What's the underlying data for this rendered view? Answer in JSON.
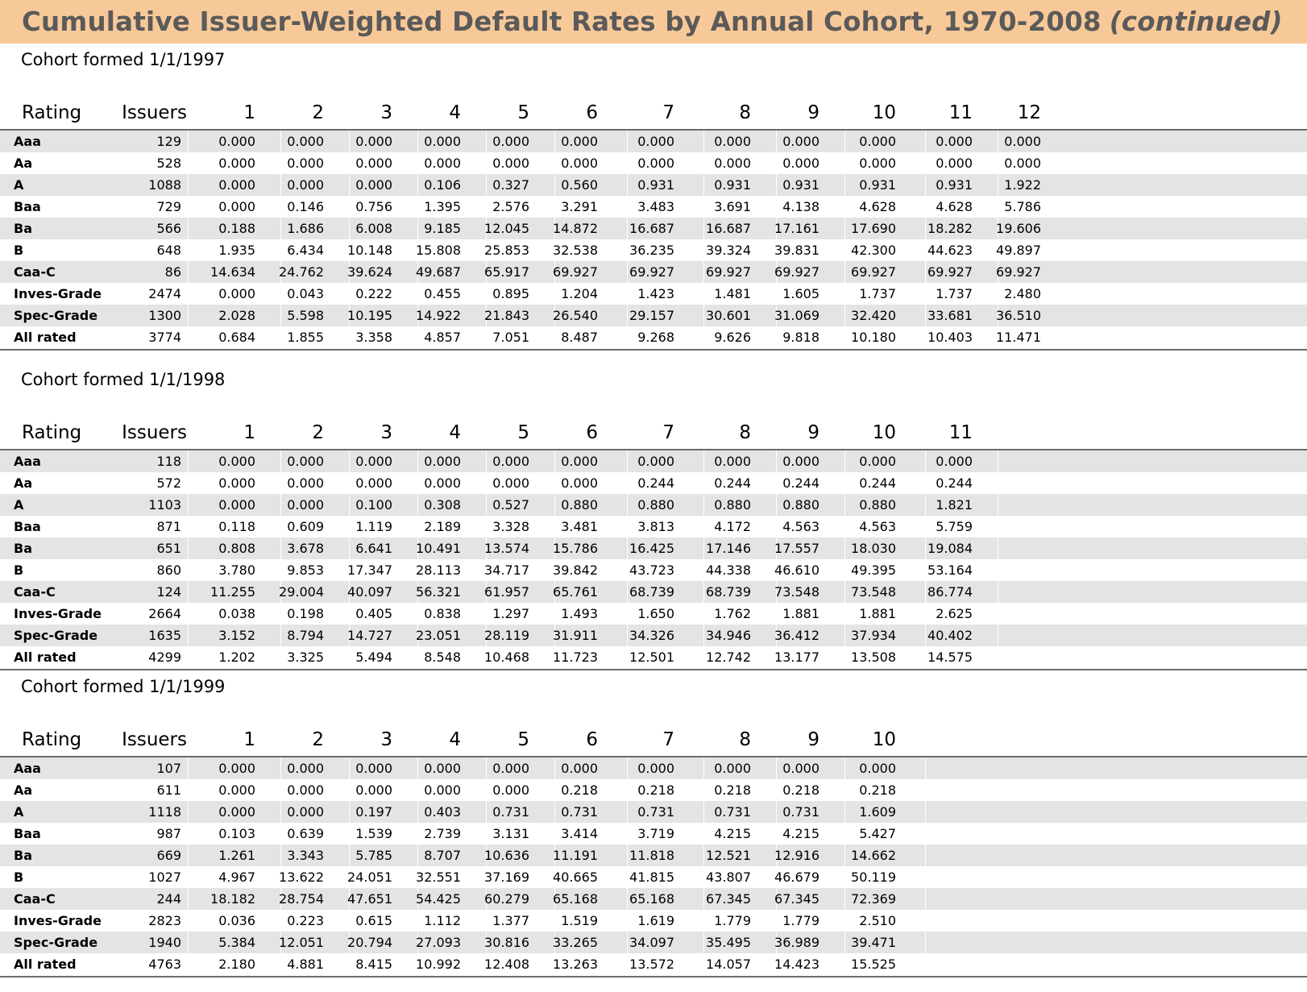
{
  "title": "Cumulative Issuer-Weighted Default Rates by Annual Cohort, 1970-2008",
  "title_suffix": "(continued)",
  "header_labels": {
    "rating": "Rating",
    "issuers": "Issuers"
  },
  "cohorts": [
    {
      "title": "Cohort formed 1/1/1997",
      "columns": [
        "1",
        "2",
        "3",
        "4",
        "5",
        "6",
        "7",
        "8",
        "9",
        "10",
        "11",
        "12"
      ],
      "rows": [
        {
          "rating": "Aaa",
          "issuers": "129",
          "values": [
            "0.000",
            "0.000",
            "0.000",
            "0.000",
            "0.000",
            "0.000",
            "0.000",
            "0.000",
            "0.000",
            "0.000",
            "0.000",
            "0.000"
          ]
        },
        {
          "rating": "Aa",
          "issuers": "528",
          "values": [
            "0.000",
            "0.000",
            "0.000",
            "0.000",
            "0.000",
            "0.000",
            "0.000",
            "0.000",
            "0.000",
            "0.000",
            "0.000",
            "0.000"
          ]
        },
        {
          "rating": "A",
          "issuers": "1088",
          "values": [
            "0.000",
            "0.000",
            "0.000",
            "0.106",
            "0.327",
            "0.560",
            "0.931",
            "0.931",
            "0.931",
            "0.931",
            "0.931",
            "1.922"
          ]
        },
        {
          "rating": "Baa",
          "issuers": "729",
          "values": [
            "0.000",
            "0.146",
            "0.756",
            "1.395",
            "2.576",
            "3.291",
            "3.483",
            "3.691",
            "4.138",
            "4.628",
            "4.628",
            "5.786"
          ]
        },
        {
          "rating": "Ba",
          "issuers": "566",
          "values": [
            "0.188",
            "1.686",
            "6.008",
            "9.185",
            "12.045",
            "14.872",
            "16.687",
            "16.687",
            "17.161",
            "17.690",
            "18.282",
            "19.606"
          ]
        },
        {
          "rating": "B",
          "issuers": "648",
          "values": [
            "1.935",
            "6.434",
            "10.148",
            "15.808",
            "25.853",
            "32.538",
            "36.235",
            "39.324",
            "39.831",
            "42.300",
            "44.623",
            "49.897"
          ]
        },
        {
          "rating": "Caa-C",
          "issuers": "86",
          "values": [
            "14.634",
            "24.762",
            "39.624",
            "49.687",
            "65.917",
            "69.927",
            "69.927",
            "69.927",
            "69.927",
            "69.927",
            "69.927",
            "69.927"
          ]
        },
        {
          "rating": "Inves-Grade",
          "issuers": "2474",
          "values": [
            "0.000",
            "0.043",
            "0.222",
            "0.455",
            "0.895",
            "1.204",
            "1.423",
            "1.481",
            "1.605",
            "1.737",
            "1.737",
            "2.480"
          ]
        },
        {
          "rating": "Spec-Grade",
          "issuers": "1300",
          "values": [
            "2.028",
            "5.598",
            "10.195",
            "14.922",
            "21.843",
            "26.540",
            "29.157",
            "30.601",
            "31.069",
            "32.420",
            "33.681",
            "36.510"
          ]
        },
        {
          "rating": "All rated",
          "issuers": "3774",
          "values": [
            "0.684",
            "1.855",
            "3.358",
            "4.857",
            "7.051",
            "8.487",
            "9.268",
            "9.626",
            "9.818",
            "10.180",
            "10.403",
            "11.471"
          ]
        }
      ]
    },
    {
      "title": "Cohort formed 1/1/1998",
      "columns": [
        "1",
        "2",
        "3",
        "4",
        "5",
        "6",
        "7",
        "8",
        "9",
        "10",
        "11"
      ],
      "rows": [
        {
          "rating": "Aaa",
          "issuers": "118",
          "values": [
            "0.000",
            "0.000",
            "0.000",
            "0.000",
            "0.000",
            "0.000",
            "0.000",
            "0.000",
            "0.000",
            "0.000",
            "0.000"
          ]
        },
        {
          "rating": "Aa",
          "issuers": "572",
          "values": [
            "0.000",
            "0.000",
            "0.000",
            "0.000",
            "0.000",
            "0.000",
            "0.244",
            "0.244",
            "0.244",
            "0.244",
            "0.244"
          ]
        },
        {
          "rating": "A",
          "issuers": "1103",
          "values": [
            "0.000",
            "0.000",
            "0.100",
            "0.308",
            "0.527",
            "0.880",
            "0.880",
            "0.880",
            "0.880",
            "0.880",
            "1.821"
          ]
        },
        {
          "rating": "Baa",
          "issuers": "871",
          "values": [
            "0.118",
            "0.609",
            "1.119",
            "2.189",
            "3.328",
            "3.481",
            "3.813",
            "4.172",
            "4.563",
            "4.563",
            "5.759"
          ]
        },
        {
          "rating": "Ba",
          "issuers": "651",
          "values": [
            "0.808",
            "3.678",
            "6.641",
            "10.491",
            "13.574",
            "15.786",
            "16.425",
            "17.146",
            "17.557",
            "18.030",
            "19.084"
          ]
        },
        {
          "rating": "B",
          "issuers": "860",
          "values": [
            "3.780",
            "9.853",
            "17.347",
            "28.113",
            "34.717",
            "39.842",
            "43.723",
            "44.338",
            "46.610",
            "49.395",
            "53.164"
          ]
        },
        {
          "rating": "Caa-C",
          "issuers": "124",
          "values": [
            "11.255",
            "29.004",
            "40.097",
            "56.321",
            "61.957",
            "65.761",
            "68.739",
            "68.739",
            "73.548",
            "73.548",
            "86.774"
          ]
        },
        {
          "rating": "Inves-Grade",
          "issuers": "2664",
          "values": [
            "0.038",
            "0.198",
            "0.405",
            "0.838",
            "1.297",
            "1.493",
            "1.650",
            "1.762",
            "1.881",
            "1.881",
            "2.625"
          ]
        },
        {
          "rating": "Spec-Grade",
          "issuers": "1635",
          "values": [
            "3.152",
            "8.794",
            "14.727",
            "23.051",
            "28.119",
            "31.911",
            "34.326",
            "34.946",
            "36.412",
            "37.934",
            "40.402"
          ]
        },
        {
          "rating": "All rated",
          "issuers": "4299",
          "values": [
            "1.202",
            "3.325",
            "5.494",
            "8.548",
            "10.468",
            "11.723",
            "12.501",
            "12.742",
            "13.177",
            "13.508",
            "14.575"
          ]
        }
      ]
    },
    {
      "title": "Cohort formed 1/1/1999",
      "columns": [
        "1",
        "2",
        "3",
        "4",
        "5",
        "6",
        "7",
        "8",
        "9",
        "10"
      ],
      "rows": [
        {
          "rating": "Aaa",
          "issuers": "107",
          "values": [
            "0.000",
            "0.000",
            "0.000",
            "0.000",
            "0.000",
            "0.000",
            "0.000",
            "0.000",
            "0.000",
            "0.000"
          ]
        },
        {
          "rating": "Aa",
          "issuers": "611",
          "values": [
            "0.000",
            "0.000",
            "0.000",
            "0.000",
            "0.000",
            "0.218",
            "0.218",
            "0.218",
            "0.218",
            "0.218"
          ]
        },
        {
          "rating": "A",
          "issuers": "1118",
          "values": [
            "0.000",
            "0.000",
            "0.197",
            "0.403",
            "0.731",
            "0.731",
            "0.731",
            "0.731",
            "0.731",
            "1.609"
          ]
        },
        {
          "rating": "Baa",
          "issuers": "987",
          "values": [
            "0.103",
            "0.639",
            "1.539",
            "2.739",
            "3.131",
            "3.414",
            "3.719",
            "4.215",
            "4.215",
            "5.427"
          ]
        },
        {
          "rating": "Ba",
          "issuers": "669",
          "values": [
            "1.261",
            "3.343",
            "5.785",
            "8.707",
            "10.636",
            "11.191",
            "11.818",
            "12.521",
            "12.916",
            "14.662"
          ]
        },
        {
          "rating": "B",
          "issuers": "1027",
          "values": [
            "4.967",
            "13.622",
            "24.051",
            "32.551",
            "37.169",
            "40.665",
            "41.815",
            "43.807",
            "46.679",
            "50.119"
          ]
        },
        {
          "rating": "Caa-C",
          "issuers": "244",
          "values": [
            "18.182",
            "28.754",
            "47.651",
            "54.425",
            "60.279",
            "65.168",
            "65.168",
            "67.345",
            "67.345",
            "72.369"
          ]
        },
        {
          "rating": "Inves-Grade",
          "issuers": "2823",
          "values": [
            "0.036",
            "0.223",
            "0.615",
            "1.112",
            "1.377",
            "1.519",
            "1.619",
            "1.779",
            "1.779",
            "2.510"
          ]
        },
        {
          "rating": "Spec-Grade",
          "issuers": "1940",
          "values": [
            "5.384",
            "12.051",
            "20.794",
            "27.093",
            "30.816",
            "33.265",
            "34.097",
            "35.495",
            "36.989",
            "39.471"
          ]
        },
        {
          "rating": "All rated",
          "issuers": "4763",
          "values": [
            "2.180",
            "4.881",
            "8.415",
            "10.992",
            "12.408",
            "13.263",
            "13.572",
            "14.057",
            "14.423",
            "15.525"
          ]
        }
      ]
    }
  ]
}
